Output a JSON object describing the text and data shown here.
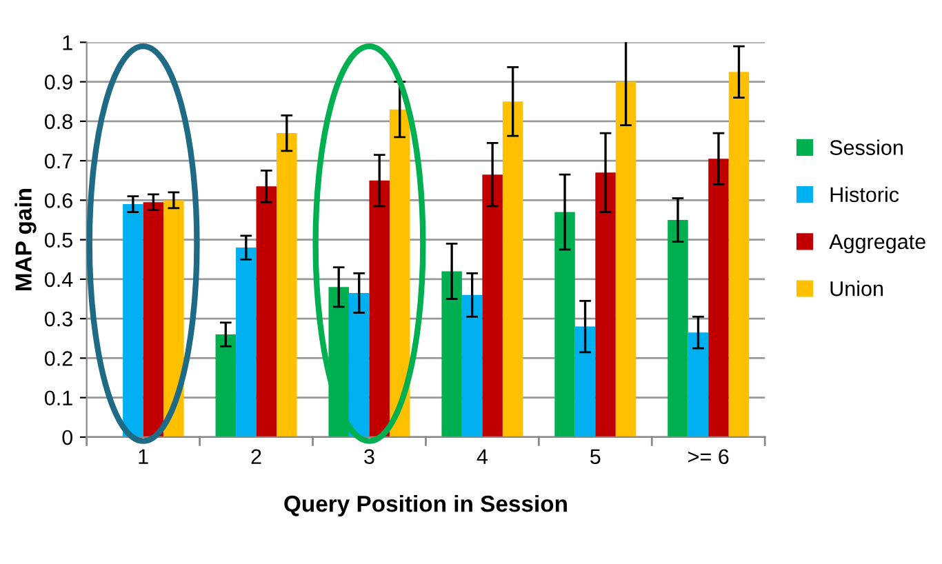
{
  "chart_data": {
    "type": "bar",
    "xlabel": "Query Position in Session",
    "ylabel": "MAP gain",
    "categories": [
      "1",
      "2",
      "3",
      "4",
      "5",
      ">= 6"
    ],
    "series": [
      {
        "name": "Session",
        "color": "#00b050",
        "values": [
          null,
          0.26,
          0.38,
          0.42,
          0.57,
          0.55
        ],
        "errors": [
          null,
          0.03,
          0.05,
          0.07,
          0.095,
          0.055
        ]
      },
      {
        "name": "Historic",
        "color": "#00b0f0",
        "values": [
          0.59,
          0.48,
          0.365,
          0.36,
          0.28,
          0.265
        ],
        "errors": [
          0.02,
          0.03,
          0.05,
          0.055,
          0.065,
          0.04
        ]
      },
      {
        "name": "Aggregate",
        "color": "#c00000",
        "values": [
          0.595,
          0.635,
          0.65,
          0.665,
          0.67,
          0.705
        ],
        "errors": [
          0.02,
          0.04,
          0.065,
          0.08,
          0.1,
          0.065
        ]
      },
      {
        "name": "Union",
        "color": "#ffc000",
        "values": [
          0.6,
          0.77,
          0.83,
          0.85,
          0.9,
          0.925
        ],
        "errors": [
          0.02,
          0.045,
          0.07,
          0.087,
          0.11,
          0.065
        ]
      }
    ],
    "ylim": [
      0,
      1
    ],
    "yticks": [
      0,
      0.1,
      0.2,
      0.3,
      0.4,
      0.5,
      0.6,
      0.7,
      0.8,
      0.9,
      1
    ],
    "grid": "y",
    "legend": "right"
  }
}
